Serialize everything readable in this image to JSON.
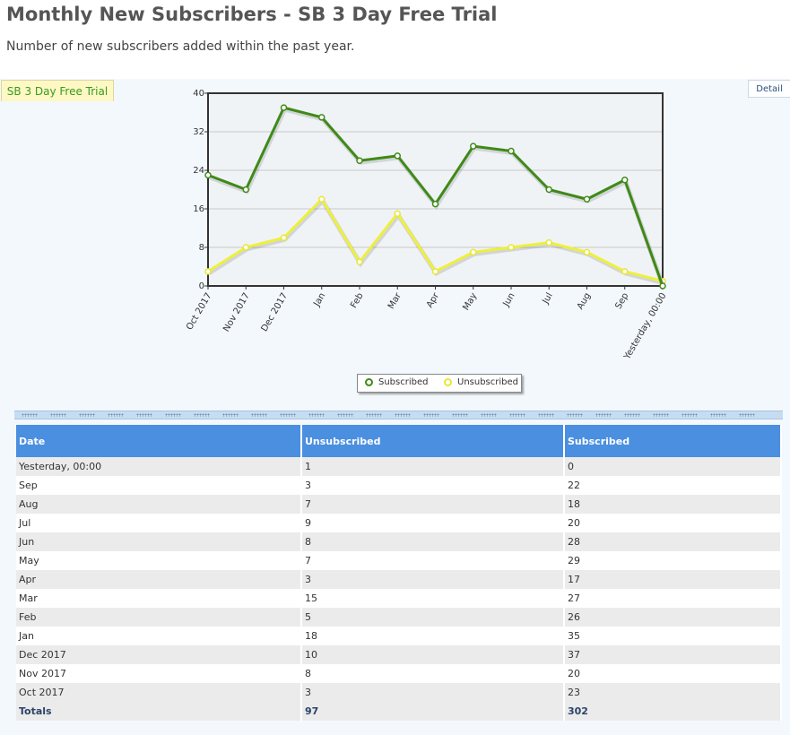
{
  "header": {
    "title": "Monthly New Subscribers - SB 3 Day Free Trial",
    "subtitle": "Number of new subscribers added within the past year."
  },
  "tabs": {
    "active_label": "SB 3 Day Free Trial",
    "detail_label": "Detail"
  },
  "colors": {
    "subscribed": "#3f8a17",
    "unsubscribed": "#eef03a",
    "table_header": "#4a8fe0"
  },
  "chart_data": {
    "type": "line",
    "categories": [
      "Oct 2017",
      "Nov 2017",
      "Dec 2017",
      "Jan",
      "Feb",
      "Mar",
      "Apr",
      "May",
      "Jun",
      "Jul",
      "Aug",
      "Sep",
      "Yesterday, 00:00"
    ],
    "series": [
      {
        "name": "Subscribed",
        "values": [
          23,
          20,
          37,
          35,
          26,
          27,
          17,
          29,
          28,
          20,
          18,
          22,
          0
        ]
      },
      {
        "name": "Unsubscribed",
        "values": [
          3,
          8,
          10,
          18,
          5,
          15,
          3,
          7,
          8,
          9,
          7,
          3,
          1
        ]
      }
    ],
    "ylim": [
      0,
      40
    ],
    "yticks": [
      0,
      8,
      16,
      24,
      32,
      40
    ],
    "grid": true,
    "legend": "bottom-center"
  },
  "table": {
    "columns": [
      "Date",
      "Unsubscribed",
      "Subscribed"
    ],
    "rows": [
      [
        "Yesterday, 00:00",
        "1",
        "0"
      ],
      [
        "Sep",
        "3",
        "22"
      ],
      [
        "Aug",
        "7",
        "18"
      ],
      [
        "Jul",
        "9",
        "20"
      ],
      [
        "Jun",
        "8",
        "28"
      ],
      [
        "May",
        "7",
        "29"
      ],
      [
        "Apr",
        "3",
        "17"
      ],
      [
        "Mar",
        "15",
        "27"
      ],
      [
        "Feb",
        "5",
        "26"
      ],
      [
        "Jan",
        "18",
        "35"
      ],
      [
        "Dec 2017",
        "10",
        "37"
      ],
      [
        "Nov 2017",
        "8",
        "20"
      ],
      [
        "Oct 2017",
        "3",
        "23"
      ]
    ],
    "totals": [
      "Totals",
      "97",
      "302"
    ]
  }
}
